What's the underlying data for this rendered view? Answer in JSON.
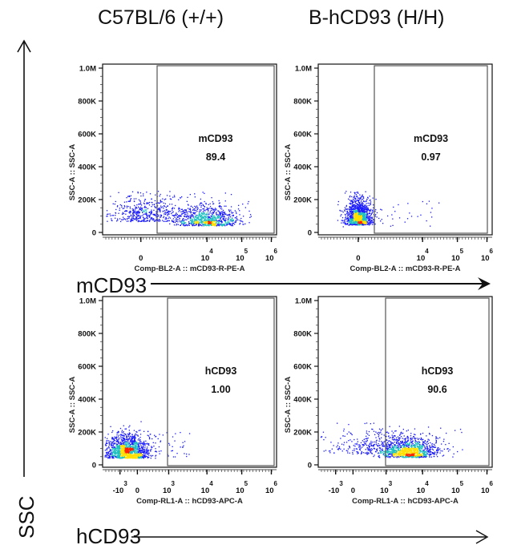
{
  "column_titles": [
    "C57BL/6 (+/+)",
    "B-hCD93 (H/H)"
  ],
  "y_axis_arrow_label": "SSC",
  "row_arrow_labels": [
    "mCD93",
    "hCD93"
  ],
  "colors": {
    "density_low": "#1a1aff",
    "density_mid": "#20c0c0",
    "density_high": "#ffe000",
    "density_peak": "#ff2000",
    "frame": "#111111",
    "gate": "#555555"
  },
  "chart_data": [
    {
      "type": "scatter",
      "subtype": "flow-cytometry-density",
      "strain": "C57BL/6 (+/+)",
      "xlabel": "Comp-BL2-A :: mCD93-R-PE-A",
      "ylabel": "SSC-A :: SSC-A",
      "y_ticks": [
        "0",
        "200K",
        "400K",
        "600K",
        "800K",
        "1.0M"
      ],
      "x_ticks": [
        {
          "base": "0",
          "exp": ""
        },
        {
          "base": "10",
          "exp": "4"
        },
        {
          "base": "10",
          "exp": "5"
        },
        {
          "base": "10",
          "exp": "6"
        }
      ],
      "gate": {
        "name": "mCD93",
        "percent": "89.4"
      },
      "population": "broad, peak near 10^4, SSC ~50K"
    },
    {
      "type": "scatter",
      "subtype": "flow-cytometry-density",
      "strain": "B-hCD93 (H/H)",
      "xlabel": "Comp-BL2-A :: mCD93-R-PE-A",
      "ylabel": "SSC-A :: SSC-A",
      "y_ticks": [
        "0",
        "200K",
        "400K",
        "600K",
        "800K",
        "1.0M"
      ],
      "x_ticks": [
        {
          "base": "0",
          "exp": ""
        },
        {
          "base": "10",
          "exp": "4"
        },
        {
          "base": "10",
          "exp": "5"
        },
        {
          "base": "10",
          "exp": "6"
        }
      ],
      "gate": {
        "name": "mCD93",
        "percent": "0.97"
      },
      "population": "compact near 0, SSC ~50K"
    },
    {
      "type": "scatter",
      "subtype": "flow-cytometry-density",
      "strain": "C57BL/6 (+/+)",
      "xlabel": "Comp-RL1-A :: hCD93-APC-A",
      "ylabel": "SSC-A :: SSC-A",
      "y_ticks": [
        "0",
        "200K",
        "400K",
        "600K",
        "800K",
        "1.0M"
      ],
      "x_ticks": [
        {
          "base": "-10",
          "exp": "3"
        },
        {
          "base": "0",
          "exp": ""
        },
        {
          "base": "10",
          "exp": "3"
        },
        {
          "base": "10",
          "exp": "4"
        },
        {
          "base": "10",
          "exp": "5"
        },
        {
          "base": "10",
          "exp": "6"
        }
      ],
      "gate": {
        "name": "hCD93",
        "percent": "1.00"
      },
      "population": "centered near 0, SSC ~50K"
    },
    {
      "type": "scatter",
      "subtype": "flow-cytometry-density",
      "strain": "B-hCD93 (H/H)",
      "xlabel": "Comp-RL1-A :: hCD93-APC-A",
      "ylabel": "SSC-A :: SSC-A",
      "y_ticks": [
        "0",
        "200K",
        "400K",
        "600K",
        "800K",
        "1.0M"
      ],
      "x_ticks": [
        {
          "base": "-10",
          "exp": "3"
        },
        {
          "base": "0",
          "exp": ""
        },
        {
          "base": "10",
          "exp": "3"
        },
        {
          "base": "10",
          "exp": "4"
        },
        {
          "base": "10",
          "exp": "5"
        },
        {
          "base": "10",
          "exp": "6"
        }
      ],
      "gate": {
        "name": "hCD93",
        "percent": "90.6"
      },
      "population": "peak between 10^3 and 10^4, SSC ~50K"
    }
  ]
}
